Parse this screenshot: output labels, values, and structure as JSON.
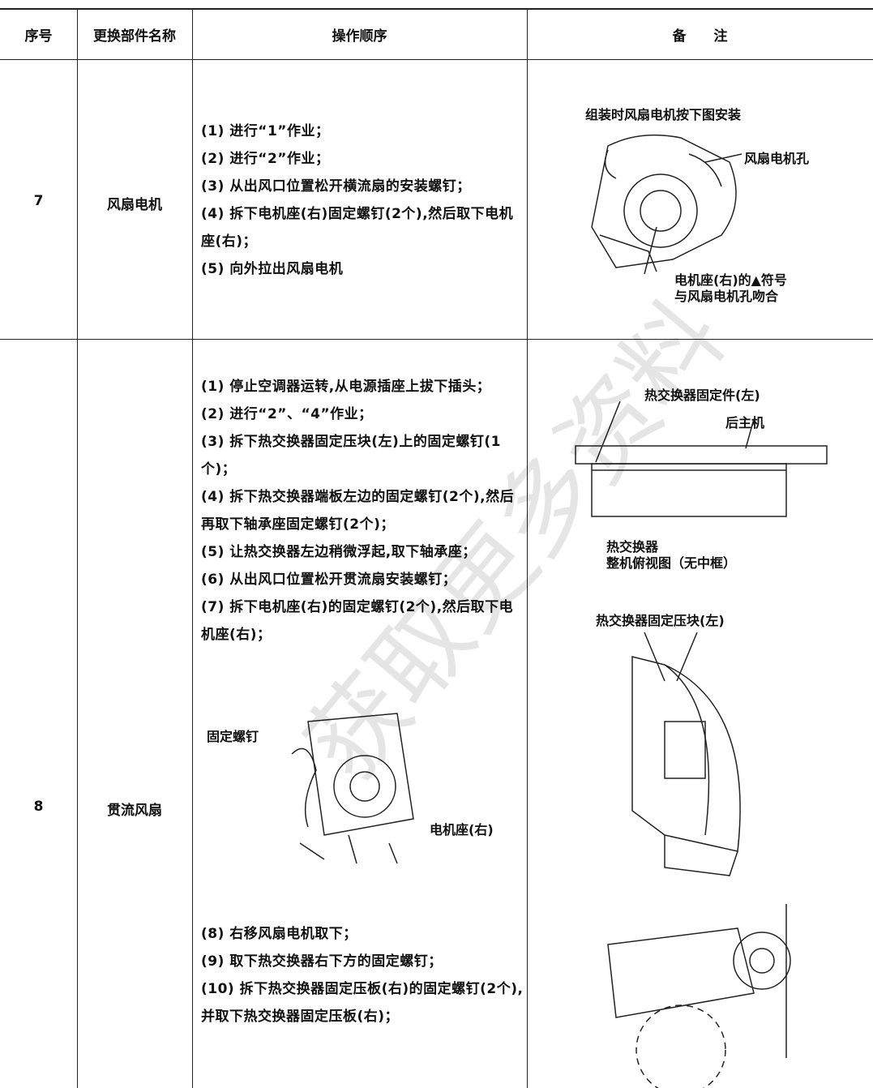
{
  "table": {
    "headers": [
      "序号",
      "更换部件名称",
      "操作顺序",
      "备　　注"
    ],
    "rows": [
      {
        "no": "7",
        "part": "风扇电机",
        "steps": [
          "(1) 进行“1”作业；",
          "(2) 进行“2”作业；",
          "(3) 从出风口位置松开横流扇的安装螺钉；",
          "(4) 拆下电机座(右)固定螺钉(2个),然后取下电机座(右)；",
          "(5) 向外拉出风扇电机"
        ],
        "notes": {
          "caption": "组装时风扇电机按下图安装",
          "hole_label": "风扇电机孔",
          "seat_label": [
            "电机座(右)的▲符号",
            "与风扇电机孔吻合"
          ]
        }
      },
      {
        "no": "8",
        "part": "贯流风扇",
        "steps": [
          "(1) 停止空调器运转,从电源插座上拔下插头；",
          "(2) 进行“2”、“4”作业；",
          "(3) 拆下热交换器固定压块(左)上的固定螺钉(1个)；",
          "(4) 拆下热交换器端板左边的固定螺钉(2个),然后再取下轴承座固定螺钉(2个)；",
          "(5) 让热交换器左边稍微浮起,取下轴承座；",
          "(6) 从出风口位置松开贯流扇安装螺钉；",
          "(7) 拆下电机座(右)的固定螺钉(2个),然后取下电机座(右)；"
        ],
        "figure_labels": [
          "固定螺钉",
          "电机座(右)"
        ],
        "steps_after": [
          "(8) 右移风扇电机取下；",
          "(9) 取下热交换器右下方的固定螺钉；",
          "(10) 拆下热交换器固定压板(右)的固定螺钉(2个),并取下热交换器固定压板(右)；"
        ],
        "notes": {
          "fixer_label": "热交换器固定件(左)",
          "rear_label": "后主机",
          "hx_label": "热交换器",
          "top_view_label": "整机俯视图（无中框）",
          "block_label": "热交换器固定压块(左)"
        }
      }
    ]
  },
  "watermark": "获取更多资料"
}
